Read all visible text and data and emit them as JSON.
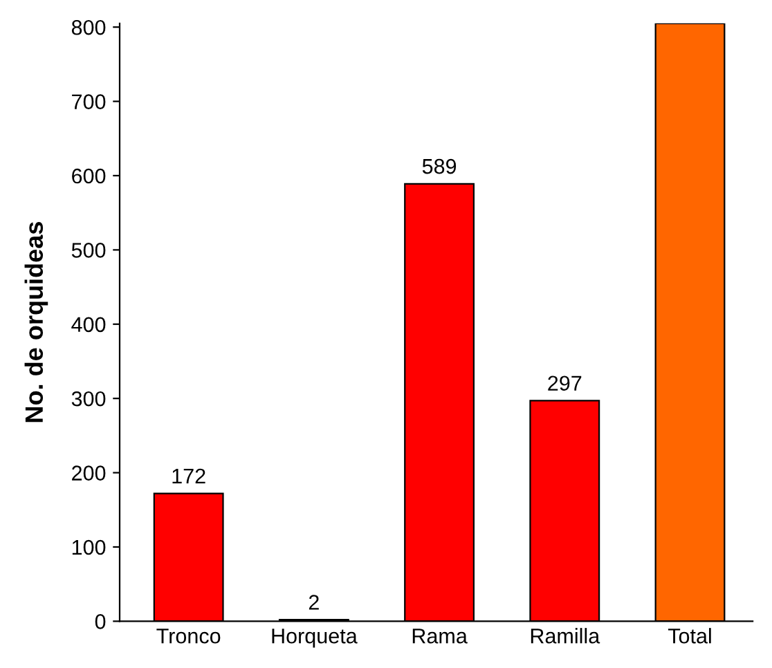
{
  "chart_data": {
    "type": "bar",
    "ylabel": "No. de orquideas",
    "categories": [
      "Tronco",
      "Horqueta",
      "Rama",
      "Ramilla",
      "Total"
    ],
    "values": [
      172,
      2,
      589,
      297,
      805
    ],
    "colors": [
      "#ff0000",
      "#ff0000",
      "#ff0000",
      "#ff0000",
      "#ff6600"
    ],
    "value_labels": [
      "172",
      "2",
      "589",
      "297",
      null
    ],
    "ylim": [
      0,
      805
    ],
    "yticks": [
      0,
      100,
      200,
      300,
      400,
      500,
      600,
      700,
      800
    ],
    "grid": false
  }
}
